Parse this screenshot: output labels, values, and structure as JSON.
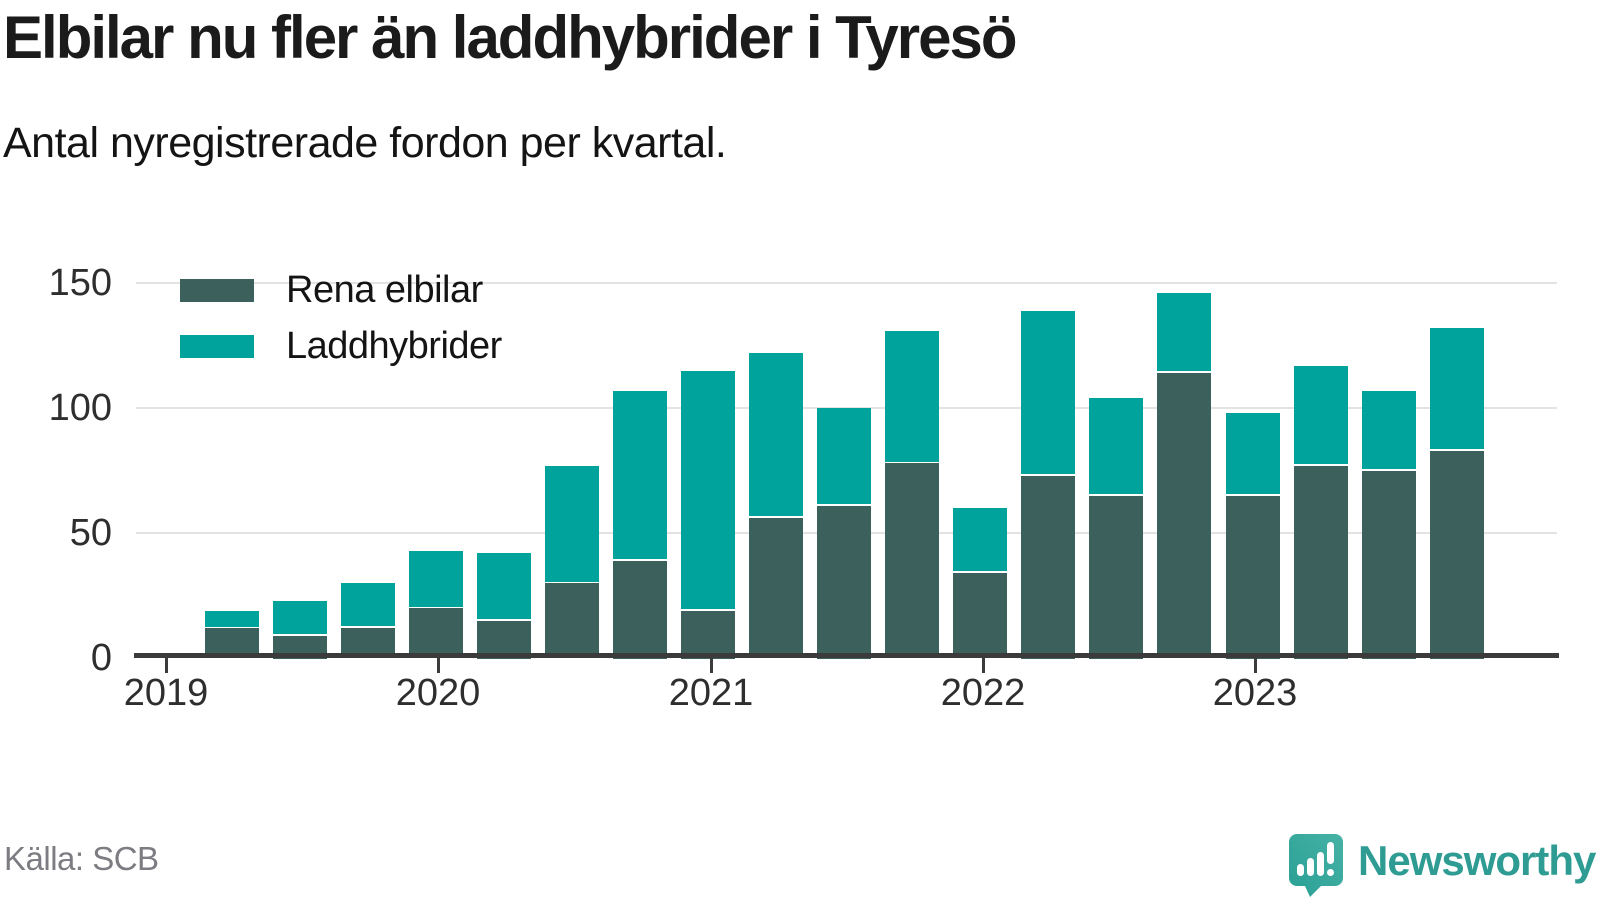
{
  "header": {
    "title": "Elbilar nu fler än laddhybrider i Tyresö",
    "subtitle": "Antal nyregistrerade fordon per kvartal."
  },
  "chart_data": {
    "type": "bar",
    "stacked": true,
    "title": "Elbilar nu fler än laddhybrider i Tyresö",
    "subtitle": "Antal nyregistrerade fordon per kvartal.",
    "categories": [
      "2019-K2",
      "2019-K3",
      "2019-K4",
      "2020-K1",
      "2020-K2",
      "2020-K3",
      "2020-K4",
      "2021-K1",
      "2021-K2",
      "2021-K3",
      "2021-K4",
      "2022-K1",
      "2022-K2",
      "2022-K3",
      "2022-K4",
      "2023-K1",
      "2023-K2",
      "2023-K3",
      "2023-K4"
    ],
    "series": [
      {
        "name": "Rena elbilar",
        "color": "#3c615c",
        "values": [
          12,
          9,
          12,
          20,
          15,
          30,
          39,
          19,
          56,
          61,
          78,
          34,
          73,
          65,
          114,
          65,
          77,
          75,
          83
        ]
      },
      {
        "name": "Laddhybrider",
        "color": "#00a39b",
        "values": [
          7,
          14,
          18,
          23,
          27,
          47,
          68,
          96,
          66,
          39,
          53,
          26,
          66,
          39,
          32,
          33,
          40,
          32,
          49
        ]
      }
    ],
    "x_tick_labels": [
      "2019",
      "2020",
      "2021",
      "2022",
      "2023"
    ],
    "yticks": [
      0,
      50,
      100,
      150
    ],
    "ylim": [
      0,
      150
    ],
    "grid": true,
    "legend_position": "top-left",
    "xlabel": "",
    "ylabel": ""
  },
  "footer": {
    "source": "Källa: SCB",
    "brand": "Newsworthy"
  },
  "colors": {
    "grid": "#e3e3e3",
    "axis": "#3b3b3b",
    "brand_teal": "#2f9c93"
  }
}
